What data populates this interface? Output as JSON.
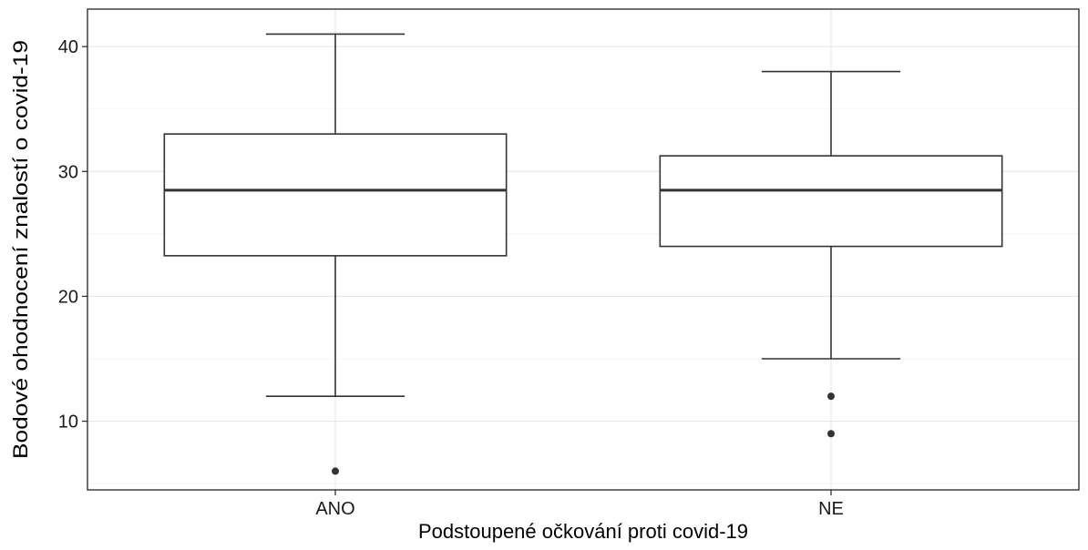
{
  "chart_data": {
    "type": "boxplot",
    "xlabel": "Podstoupené očkování proti covid-19",
    "ylabel": "Bodové ohodnocení znalostí o covid-19",
    "ylim": [
      4.5,
      43
    ],
    "yticks": [
      10,
      20,
      30,
      40
    ],
    "y_minor_ticks": [
      5,
      15,
      25,
      35
    ],
    "grid": true,
    "categories": [
      "ANO",
      "NE"
    ],
    "boxes": [
      {
        "category": "ANO",
        "whisker_low": 12,
        "q1": 23.25,
        "median": 28.5,
        "q3": 33,
        "whisker_high": 41,
        "outliers": [
          6
        ]
      },
      {
        "category": "NE",
        "whisker_low": 15,
        "q1": 24,
        "median": 28.5,
        "q3": 31.25,
        "whisker_high": 38,
        "outliers": [
          12,
          9
        ]
      }
    ]
  }
}
